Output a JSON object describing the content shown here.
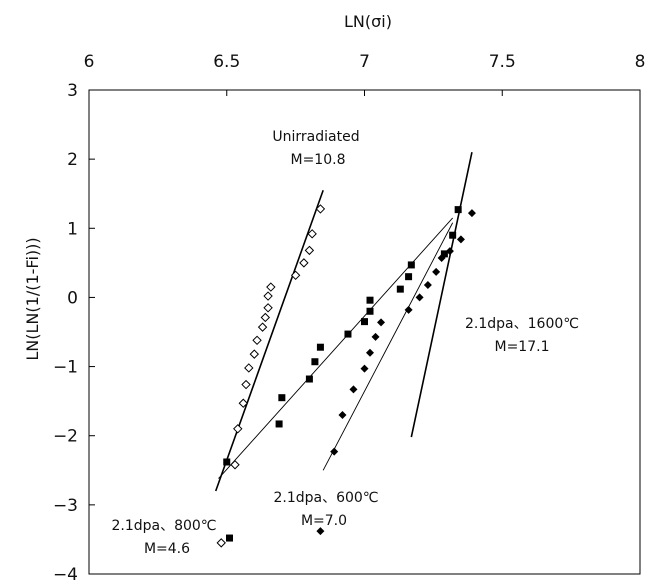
{
  "chart_data": {
    "type": "scatter",
    "xlabel": "LN(σi)",
    "ylabel": "LN(LN(1/(1-Fi)))",
    "xlim": [
      6,
      8
    ],
    "ylim": [
      -4,
      3
    ],
    "x_ticks": [
      "6",
      "6.5",
      "7",
      "7.5",
      "8"
    ],
    "y_ticks": [
      "3",
      "2",
      "1",
      "0",
      "-1",
      "-2",
      "-3",
      "-4"
    ],
    "x_axis_position": "top",
    "grid": false,
    "series": [
      {
        "marker": "open-diamond",
        "points": [
          [
            6.48,
            -3.55
          ],
          [
            6.53,
            -2.42
          ],
          [
            6.54,
            -1.9
          ],
          [
            6.56,
            -1.53
          ],
          [
            6.57,
            -1.26
          ],
          [
            6.58,
            -1.02
          ],
          [
            6.6,
            -0.82
          ],
          [
            6.61,
            -0.62
          ],
          [
            6.63,
            -0.43
          ],
          [
            6.64,
            -0.29
          ],
          [
            6.65,
            -0.15
          ],
          [
            6.65,
            0.02
          ],
          [
            6.66,
            0.15
          ],
          [
            6.75,
            0.32
          ],
          [
            6.78,
            0.5
          ],
          [
            6.8,
            0.68
          ],
          [
            6.81,
            0.92
          ],
          [
            6.84,
            1.28
          ]
        ],
        "fit_line": [
          [
            6.46,
            -2.8
          ],
          [
            6.85,
            1.55
          ]
        ]
      },
      {
        "marker": "filled-square",
        "points": [
          [
            6.5,
            -2.38
          ],
          [
            6.51,
            -3.48
          ],
          [
            6.69,
            -1.83
          ],
          [
            6.7,
            -1.45
          ],
          [
            6.8,
            -1.18
          ],
          [
            6.82,
            -0.93
          ],
          [
            6.84,
            -0.72
          ],
          [
            6.94,
            -0.53
          ],
          [
            7.0,
            -0.35
          ],
          [
            7.02,
            -0.04
          ],
          [
            7.02,
            -0.2
          ],
          [
            7.13,
            0.12
          ],
          [
            7.16,
            0.3
          ],
          [
            7.17,
            0.47
          ],
          [
            7.29,
            0.63
          ],
          [
            7.32,
            0.9
          ],
          [
            7.34,
            1.27
          ]
        ],
        "fit_line": [
          [
            6.47,
            -2.62
          ],
          [
            7.32,
            1.15
          ]
        ]
      },
      {
        "marker": "filled-diamond",
        "points": [
          [
            6.84,
            -3.38
          ],
          [
            6.89,
            -2.23
          ],
          [
            6.92,
            -1.7
          ],
          [
            6.96,
            -1.33
          ],
          [
            7.0,
            -1.03
          ],
          [
            7.02,
            -0.8
          ],
          [
            7.04,
            -0.57
          ],
          [
            7.06,
            -0.36
          ],
          [
            7.16,
            -0.18
          ],
          [
            7.2,
            0.0
          ],
          [
            7.23,
            0.18
          ],
          [
            7.26,
            0.37
          ],
          [
            7.28,
            0.57
          ],
          [
            7.31,
            0.67
          ],
          [
            7.35,
            0.84
          ],
          [
            7.39,
            1.22
          ]
        ],
        "fit_line": [
          [
            6.85,
            -2.5
          ],
          [
            7.32,
            1.08
          ]
        ]
      },
      {
        "fit_line": [
          [
            7.17,
            -2.02
          ],
          [
            7.39,
            2.1
          ]
        ]
      }
    ],
    "annotations": [
      {
        "lines": [
          "Unirradiated",
          "M=10.8"
        ]
      },
      {
        "lines": [
          "2.1dpa、1600℃",
          "M=17.1"
        ]
      },
      {
        "lines": [
          "2.1dpa、600℃",
          "M=7.0"
        ]
      },
      {
        "lines": [
          "2.1dpa、800℃",
          "M=4.6"
        ]
      }
    ]
  }
}
